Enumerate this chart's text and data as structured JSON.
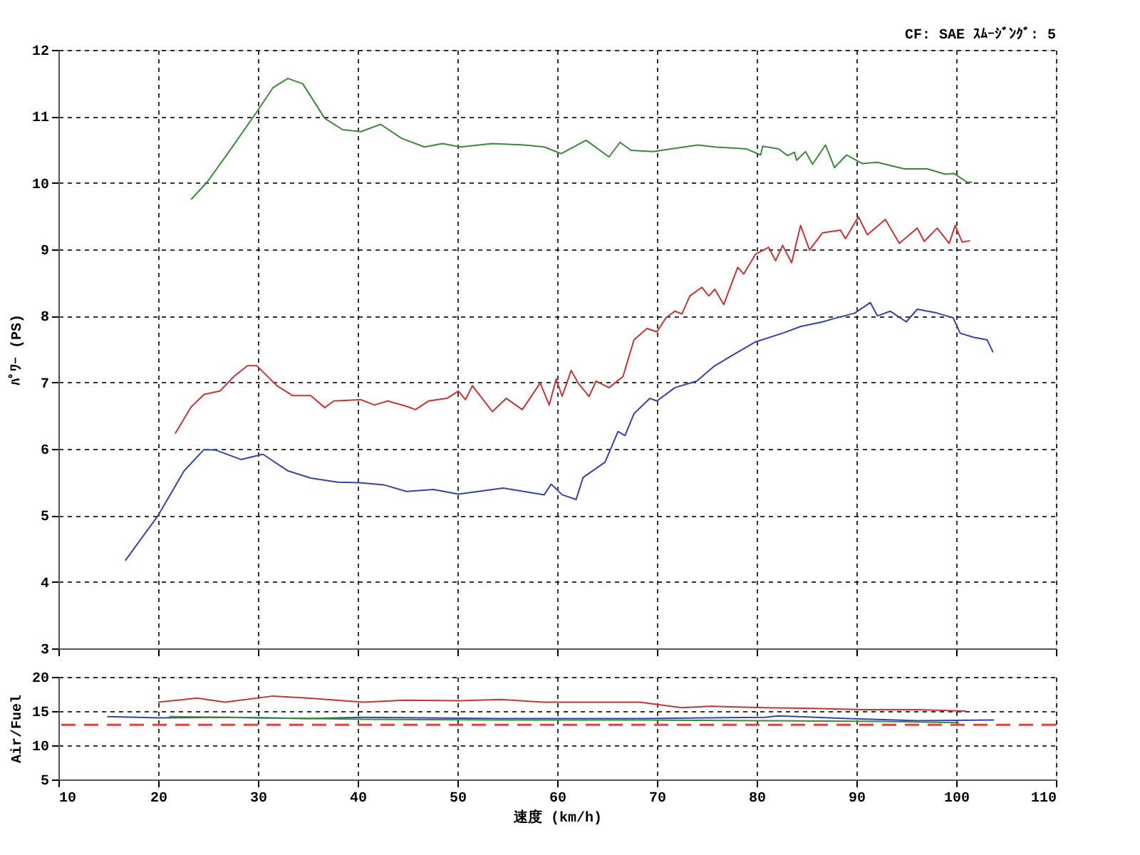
{
  "chart_data": [
    {
      "type": "line",
      "ylabel": "ﾊﾟﾜｰ (PS)",
      "annotations": [
        "CF: SAE ｽﾑｰｼﾞﾝｸﾞ: 5"
      ],
      "xlim": [
        10,
        110
      ],
      "xticks": [
        10,
        20,
        30,
        40,
        50,
        60,
        70,
        80,
        90,
        100,
        110
      ],
      "ylim": [
        3,
        12
      ],
      "yticks": [
        3,
        4,
        5,
        6,
        7,
        8,
        9,
        10,
        11,
        12
      ],
      "grid": true,
      "tick_labels": "y",
      "line_style": "solid",
      "series": [
        {
          "color": "#3a8a3a",
          "x": [
            23.3,
            24.9,
            27.1,
            29.9,
            31.5,
            33,
            34.5,
            36.7,
            38.5,
            40.3,
            42.3,
            44.4,
            46.7,
            48.5,
            50.3,
            53.5,
            56.7,
            58.7,
            60.4,
            62.9,
            65.2,
            66.3,
            67.4,
            69.6,
            74.1,
            75.8,
            79,
            80.4,
            80.6,
            82.2,
            83.1,
            83.8,
            84,
            84.9,
            85.6,
            86.9,
            87.8,
            89,
            90.6,
            92.1,
            94.8,
            97.1,
            98.9,
            99.8,
            101.1,
            101.6
          ],
          "values": [
            9.75,
            10.01,
            10.47,
            11.07,
            11.43,
            11.57,
            11.49,
            10.97,
            10.8,
            10.77,
            10.88,
            10.67,
            10.54,
            10.59,
            10.54,
            10.59,
            10.57,
            10.54,
            10.44,
            10.64,
            10.39,
            10.61,
            10.49,
            10.47,
            10.57,
            10.54,
            10.51,
            10.42,
            10.55,
            10.51,
            10.41,
            10.46,
            10.34,
            10.47,
            10.28,
            10.57,
            10.23,
            10.42,
            10.29,
            10.31,
            10.21,
            10.21,
            10.13,
            10.14,
            10.01,
            10.01
          ]
        },
        {
          "color": "#cc3333",
          "x": [
            21.7,
            23.3,
            24.6,
            26.2,
            27.6,
            28.95,
            29.9,
            31.9,
            33.5,
            35.3,
            36.7,
            37.6,
            40.3,
            41.7,
            43,
            44.9,
            45.8,
            47.1,
            48.95,
            50.1,
            50.8,
            51.5,
            53.5,
            54.9,
            56.5,
            58.3,
            59.2,
            59.9,
            60.5,
            61.4,
            62.1,
            63.2,
            63.9,
            65.2,
            66.6,
            67.7,
            69,
            70,
            70.9,
            71.8,
            72.5,
            73.3,
            74.5,
            75.2,
            75.8,
            76.7,
            78.1,
            78.7,
            79.9,
            81.2,
            81.9,
            82.6,
            83.5,
            84.4,
            85.3,
            86.6,
            88.4,
            88.9,
            90.2,
            91.1,
            92.9,
            94.3,
            96.1,
            96.8,
            98.1,
            99.3,
            99.9,
            100.6,
            101.4
          ],
          "values": [
            6.23,
            6.63,
            6.82,
            6.87,
            7.09,
            7.25,
            7.25,
            6.95,
            6.8,
            6.8,
            6.62,
            6.72,
            6.74,
            6.66,
            6.72,
            6.64,
            6.59,
            6.72,
            6.76,
            6.87,
            6.74,
            6.95,
            6.56,
            6.76,
            6.59,
            6.99,
            6.66,
            7.05,
            6.79,
            7.18,
            6.99,
            6.79,
            7.02,
            6.92,
            7.09,
            7.64,
            7.81,
            7.76,
            7.97,
            8.07,
            8.03,
            8.3,
            8.43,
            8.3,
            8.4,
            8.17,
            8.73,
            8.63,
            8.93,
            9.03,
            8.83,
            9.06,
            8.8,
            9.36,
            8.99,
            9.25,
            9.29,
            9.16,
            9.49,
            9.22,
            9.45,
            9.09,
            9.32,
            9.12,
            9.32,
            9.09,
            9.36,
            9.11,
            9.13
          ]
        },
        {
          "color": "#3344aa",
          "x": [
            16.7,
            20,
            22.6,
            24.6,
            25.8,
            28.3,
            30.5,
            33,
            35.3,
            38,
            40.3,
            42.6,
            44.9,
            47.6,
            50.1,
            54.6,
            57.4,
            58.7,
            59.4,
            60.5,
            61.9,
            62.6,
            64.8,
            66.1,
            66.8,
            67.7,
            69.3,
            70,
            71.8,
            74,
            75.8,
            77.6,
            79.9,
            82.6,
            84.4,
            86.6,
            88,
            89.8,
            91.4,
            92.1,
            93.4,
            95,
            96.1,
            97.9,
            99.7,
            100.4,
            101.7,
            103.1,
            103.7
          ],
          "values": [
            4.32,
            5.0,
            5.67,
            5.99,
            5.98,
            5.84,
            5.92,
            5.67,
            5.56,
            5.5,
            5.49,
            5.46,
            5.36,
            5.39,
            5.32,
            5.41,
            5.34,
            5.31,
            5.47,
            5.31,
            5.24,
            5.57,
            5.8,
            6.26,
            6.2,
            6.53,
            6.76,
            6.72,
            6.92,
            7.02,
            7.25,
            7.41,
            7.61,
            7.74,
            7.84,
            7.91,
            7.97,
            8.04,
            8.2,
            8.0,
            8.07,
            7.91,
            8.1,
            8.05,
            7.97,
            7.74,
            7.68,
            7.64,
            7.45
          ]
        }
      ]
    },
    {
      "type": "line",
      "xlabel": "速度 (km/h)",
      "ylabel": "Air/Fuel",
      "xlim": [
        10,
        110
      ],
      "xticks": [
        10,
        20,
        30,
        40,
        50,
        60,
        70,
        80,
        90,
        100,
        110
      ],
      "ylim": [
        5,
        20
      ],
      "yticks": [
        5,
        10,
        15,
        20
      ],
      "grid": true,
      "line_style": "solid",
      "ref_lines": [
        {
          "axis": "y",
          "value": 13,
          "color": "#dd4444",
          "line_style": "dashed"
        }
      ],
      "series": [
        {
          "color": "#cc3333",
          "x": [
            20,
            23.9,
            26.7,
            31.5,
            35,
            40.6,
            44.7,
            50.3,
            54.4,
            58.6,
            64.9,
            68.3,
            72.5,
            75.3,
            80.8,
            85.7,
            90.6,
            96.1,
            101
          ],
          "values": [
            16.3,
            16.9,
            16.3,
            17.2,
            16.9,
            16.3,
            16.6,
            16.5,
            16.7,
            16.3,
            16.3,
            16.3,
            15.5,
            15.7,
            15.5,
            15.4,
            15.2,
            15.2,
            15.0
          ]
        },
        {
          "color": "#3344aa",
          "x": [
            14.9,
            20,
            26.7,
            35,
            40.6,
            54.4,
            68.3,
            80.8,
            82.2,
            89.2,
            96.1,
            103.8
          ],
          "values": [
            14.2,
            14.0,
            14.1,
            13.9,
            14.1,
            13.9,
            13.9,
            14.1,
            14.3,
            13.9,
            13.6,
            13.7
          ]
        },
        {
          "color": "#3a8a3a",
          "x": [
            21.1,
            26.7,
            40.6,
            54.4,
            68.3,
            80.8,
            92.6,
            100.3
          ],
          "values": [
            14.2,
            14.1,
            13.8,
            13.7,
            13.7,
            13.6,
            13.5,
            13.3
          ]
        }
      ]
    }
  ]
}
